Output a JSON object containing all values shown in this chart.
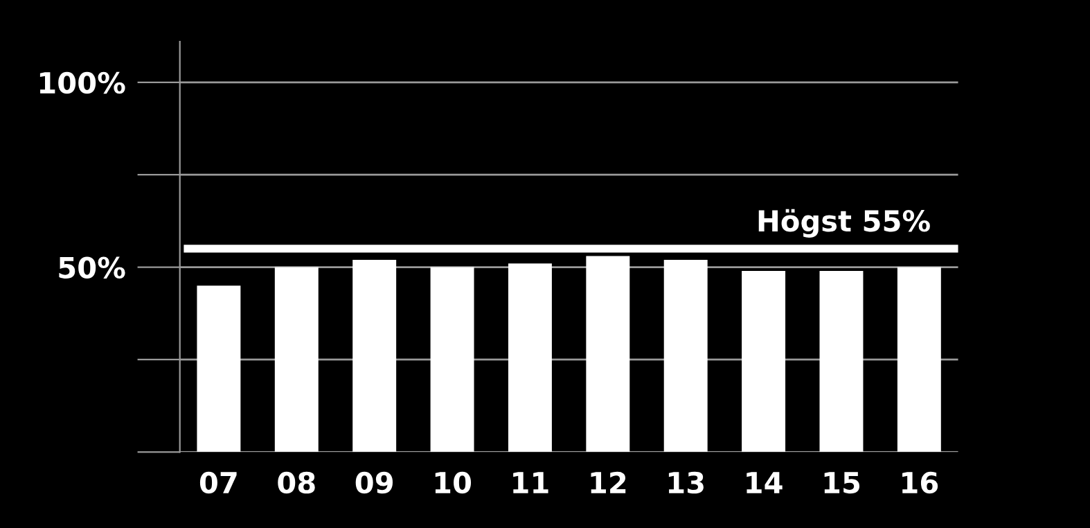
{
  "chart_data": {
    "type": "bar",
    "categories": [
      "07",
      "08",
      "09",
      "10",
      "11",
      "12",
      "13",
      "14",
      "15",
      "16"
    ],
    "values": [
      45,
      50,
      52,
      50,
      51,
      53,
      52,
      49,
      49,
      50
    ],
    "color": "#ffffff",
    "ylim": [
      0,
      111
    ],
    "yticks": [
      {
        "value": 0,
        "label": null
      },
      {
        "value": 25,
        "label": null
      },
      {
        "value": 50,
        "label": "50%"
      },
      {
        "value": 75,
        "label": null
      },
      {
        "value": 100,
        "label": "100%"
      }
    ],
    "grid": "y",
    "ref_lines": [
      {
        "axis": "y",
        "value": 55,
        "label": "Högst 55%",
        "color": "#ffffff"
      }
    ]
  }
}
